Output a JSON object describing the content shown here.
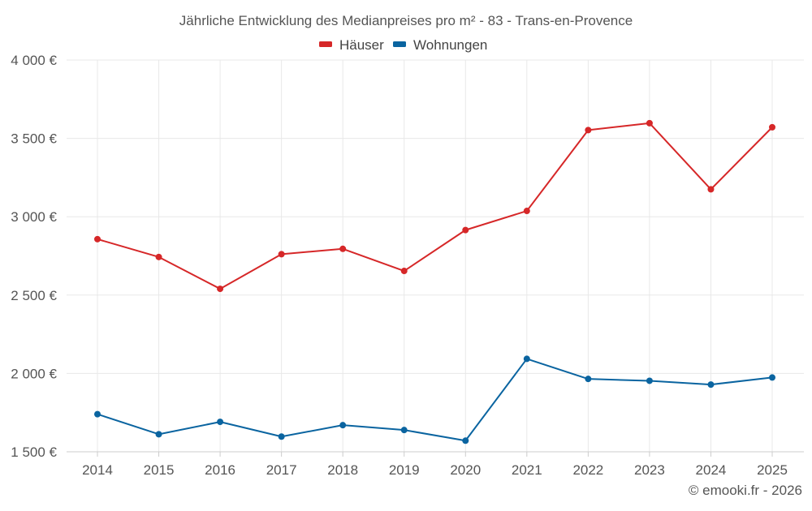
{
  "chart_data": {
    "type": "line",
    "title": "Jährliche Entwicklung des Medianpreises pro m² - 83 - Trans-en-Provence",
    "categories": [
      "2014",
      "2015",
      "2016",
      "2017",
      "2018",
      "2019",
      "2020",
      "2021",
      "2022",
      "2023",
      "2024",
      "2025"
    ],
    "series": [
      {
        "name": "Häuser",
        "color": "#d62728",
        "values": [
          2857,
          2743,
          2540,
          2761,
          2795,
          2654,
          2915,
          3037,
          3553,
          3597,
          3175,
          3571
        ]
      },
      {
        "name": "Wohnungen",
        "color": "#0a64a0",
        "values": [
          1740,
          1612,
          1691,
          1597,
          1670,
          1639,
          1571,
          2093,
          1965,
          1953,
          1929,
          1974
        ]
      }
    ],
    "ylim": [
      1500,
      4000
    ],
    "yticks": [
      1500,
      2000,
      2500,
      3000,
      3500,
      4000
    ],
    "ytick_labels": [
      "1 500 €",
      "2 000 €",
      "2 500 €",
      "3 000 €",
      "3 500 €",
      "4 000 €"
    ],
    "xlabel": "",
    "ylabel": "",
    "legend_position": "top-center",
    "grid": true
  },
  "credit": "© emooki.fr - 2026"
}
